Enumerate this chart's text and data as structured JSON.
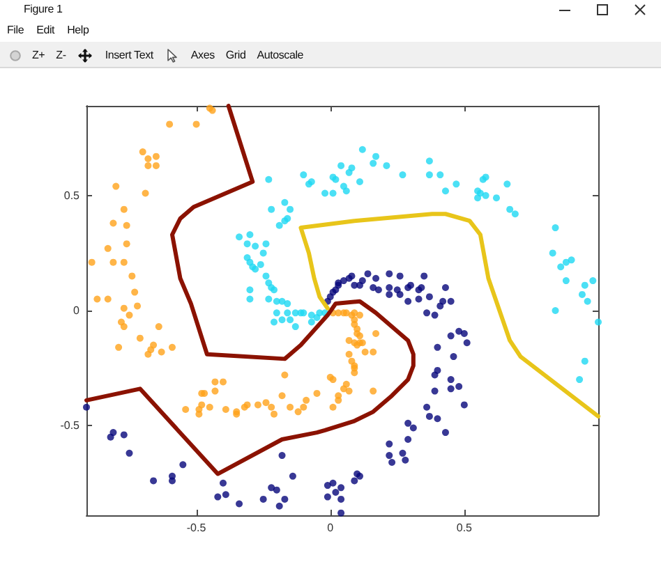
{
  "chart_data": [
    {
      "type": "other",
      "title": "Figure 1",
      "annotations": [
        "File",
        "Edit",
        "Help"
      ]
    },
    {
      "type": "other",
      "annotations": [
        "Z+",
        "Z-",
        "Insert Text",
        "Axes",
        "Grid",
        "Autoscale"
      ]
    },
    {
      "type": "scatter",
      "xlim": [
        -0.91,
        1.0
      ],
      "ylim": [
        -0.89,
        0.89
      ],
      "xticks": [
        -0.5,
        0,
        0.5
      ],
      "yticks": [
        -0.5,
        0,
        0.5
      ],
      "marker": "circle",
      "series": [
        {
          "type": "scatter",
          "color": "#ffa31a",
          "x": [
            -0.45,
            -0.44,
            -0.6,
            -0.5,
            -0.7,
            -0.68,
            -0.65,
            -0.68,
            -0.65,
            -0.8,
            -0.69,
            -0.77,
            -0.81,
            -0.76,
            -0.76,
            -0.83,
            -0.89,
            -0.81,
            -0.77,
            -0.74,
            -0.73,
            -0.87,
            -0.83,
            -0.77,
            -0.72,
            -0.75,
            -0.78,
            -0.77,
            -0.64,
            -0.71,
            -0.79,
            -0.66,
            -0.67,
            -0.68,
            -0.63,
            -0.59,
            -0.54,
            -0.49,
            -0.48,
            -0.47,
            -0.43,
            -0.4,
            -0.43,
            -0.48,
            -0.45,
            -0.49,
            -0.39,
            -0.35,
            -0.35,
            -0.32,
            -0.31,
            -0.27,
            -0.24,
            -0.22,
            -0.21,
            -0.18,
            -0.17,
            -0.15,
            -0.12,
            -0.1,
            -0.09,
            -0.05,
            0.0,
            0.01,
            0.03,
            0.03,
            0.05,
            0.06,
            0.07,
            0.16,
            0.01,
            0.01,
            0.03,
            0.05,
            0.06,
            0.08,
            0.09,
            0.11,
            0.09,
            0.09,
            0.1,
            0.1,
            0.07,
            0.09,
            0.1,
            0.11,
            0.12,
            0.11,
            0.17,
            0.13,
            0.16,
            0.07,
            0.09,
            0.09,
            0.09,
            0.08
          ],
          "values": [
            0.88,
            0.87,
            0.81,
            0.81,
            0.69,
            0.66,
            0.67,
            0.63,
            0.63,
            0.54,
            0.51,
            0.44,
            0.38,
            0.37,
            0.29,
            0.27,
            0.21,
            0.21,
            0.21,
            0.15,
            0.08,
            0.05,
            0.05,
            0.01,
            0.02,
            -0.02,
            -0.05,
            -0.07,
            -0.07,
            -0.12,
            -0.16,
            -0.15,
            -0.17,
            -0.19,
            -0.18,
            -0.16,
            -0.43,
            -0.43,
            -0.36,
            -0.36,
            -0.31,
            -0.31,
            -0.35,
            -0.41,
            -0.42,
            -0.45,
            -0.43,
            -0.45,
            -0.44,
            -0.42,
            -0.41,
            -0.41,
            -0.4,
            -0.42,
            -0.45,
            -0.37,
            -0.28,
            -0.42,
            -0.44,
            -0.42,
            -0.39,
            -0.36,
            -0.29,
            -0.3,
            -0.37,
            -0.39,
            -0.34,
            -0.32,
            -0.35,
            -0.35,
            -0.42,
            -0.01,
            -0.01,
            -0.01,
            -0.01,
            -0.02,
            -0.01,
            -0.02,
            -0.04,
            -0.06,
            -0.08,
            -0.1,
            -0.13,
            -0.14,
            -0.15,
            -0.14,
            -0.14,
            -0.11,
            -0.1,
            -0.18,
            -0.18,
            -0.19,
            -0.24,
            -0.25,
            -0.27,
            -0.22
          ]
        },
        {
          "type": "scatter",
          "color": "#1ed8f2",
          "x": [
            -0.23,
            -0.22,
            -0.17,
            -0.15,
            -0.16,
            -0.17,
            -0.19,
            -0.34,
            -0.3,
            -0.31,
            -0.28,
            -0.24,
            -0.25,
            -0.31,
            -0.3,
            -0.29,
            -0.28,
            -0.26,
            -0.24,
            -0.23,
            -0.22,
            -0.21,
            -0.3,
            -0.3,
            -0.23,
            -0.2,
            -0.18,
            -0.16,
            -0.2,
            -0.16,
            -0.13,
            -0.11,
            -0.1,
            -0.07,
            -0.05,
            -0.04,
            -0.02,
            -0.1,
            -0.08,
            -0.07,
            -0.02,
            -0.21,
            -0.18,
            -0.13,
            -0.07,
            -0.15,
            0.01,
            0.01,
            0.02,
            0.04,
            0.05,
            0.06,
            0.07,
            0.08,
            0.11,
            0.12,
            0.16,
            0.17,
            0.21,
            0.27,
            0.37,
            0.37,
            0.41,
            0.43,
            0.47,
            0.55,
            0.55,
            0.56,
            0.58,
            0.58,
            0.57,
            0.62,
            0.66,
            0.67,
            0.69,
            0.84,
            0.83,
            0.86,
            0.88,
            0.9,
            0.88,
            0.95,
            0.96,
            0.94,
            0.98,
            0.84,
            1.0,
            0.95,
            0.93
          ],
          "values": [
            0.57,
            0.44,
            0.47,
            0.44,
            0.4,
            0.39,
            0.37,
            0.32,
            0.33,
            0.29,
            0.28,
            0.29,
            0.25,
            0.23,
            0.21,
            0.19,
            0.18,
            0.2,
            0.15,
            0.12,
            0.1,
            0.09,
            0.09,
            0.05,
            0.05,
            0.04,
            0.04,
            0.03,
            -0.01,
            -0.01,
            -0.01,
            -0.01,
            -0.01,
            -0.02,
            -0.03,
            -0.01,
            -0.01,
            0.59,
            0.55,
            0.56,
            0.51,
            -0.05,
            -0.04,
            -0.07,
            -0.05,
            -0.04,
            0.51,
            0.58,
            0.57,
            0.63,
            0.54,
            0.52,
            0.6,
            0.62,
            0.56,
            0.7,
            0.64,
            0.67,
            0.63,
            0.59,
            0.65,
            0.59,
            0.59,
            0.52,
            0.55,
            0.49,
            0.52,
            0.51,
            0.5,
            0.58,
            0.57,
            0.49,
            0.55,
            0.44,
            0.42,
            0.36,
            0.25,
            0.19,
            0.21,
            0.22,
            0.13,
            0.11,
            0.04,
            0.07,
            0.13,
            0.0,
            -0.05,
            -0.22,
            -0.3
          ]
        },
        {
          "type": "scatter",
          "color": "#06067a",
          "x": [
            0.03,
            0.05,
            0.07,
            0.08,
            0.09,
            0.12,
            0.11,
            0.14,
            0.17,
            0.16,
            0.18,
            0.22,
            0.22,
            0.22,
            0.25,
            0.26,
            0.26,
            0.29,
            0.29,
            0.3,
            0.33,
            0.34,
            0.35,
            0.33,
            0.37,
            0.36,
            0.39,
            0.41,
            0.42,
            0.43,
            0.45,
            -0.01,
            0.0,
            0.01,
            0.02,
            0.03,
            0.45,
            0.48,
            0.5,
            0.51,
            0.4,
            0.46,
            0.4,
            0.39,
            0.45,
            0.45,
            0.48,
            0.39,
            0.5,
            0.36,
            0.37,
            0.4,
            0.43,
            0.29,
            0.31,
            0.29,
            0.22,
            0.22,
            0.23,
            0.27,
            0.28,
            0.1,
            0.11,
            0.09,
            -0.01,
            0.01,
            -0.01,
            0.02,
            0.04,
            0.04,
            0.04,
            -0.91,
            -0.82,
            -0.81,
            -0.77,
            -0.75,
            -0.66,
            -0.59,
            -0.59,
            -0.55,
            -0.4,
            -0.42,
            -0.39,
            -0.34,
            -0.25,
            -0.22,
            -0.2,
            -0.17,
            -0.19,
            -0.18,
            -0.14
          ],
          "values": [
            0.12,
            0.13,
            0.14,
            0.15,
            0.11,
            0.13,
            0.11,
            0.16,
            0.14,
            0.1,
            0.09,
            0.16,
            0.1,
            0.07,
            0.09,
            0.07,
            0.15,
            0.1,
            0.04,
            0.11,
            0.09,
            0.1,
            0.15,
            0.05,
            0.06,
            -0.01,
            -0.02,
            0.02,
            0.04,
            0.1,
            0.04,
            0.04,
            0.06,
            0.08,
            0.09,
            0.11,
            -0.11,
            -0.09,
            -0.1,
            -0.14,
            -0.16,
            -0.2,
            -0.26,
            -0.28,
            -0.3,
            -0.34,
            -0.33,
            -0.35,
            -0.41,
            -0.42,
            -0.46,
            -0.47,
            -0.53,
            -0.49,
            -0.51,
            -0.56,
            -0.58,
            -0.63,
            -0.66,
            -0.62,
            -0.65,
            -0.71,
            -0.72,
            -0.74,
            -0.76,
            -0.75,
            -0.81,
            -0.79,
            -0.77,
            -0.82,
            -0.88,
            -0.42,
            -0.55,
            -0.53,
            -0.54,
            -0.62,
            -0.74,
            -0.72,
            -0.74,
            -0.67,
            -0.75,
            -0.81,
            -0.8,
            -0.84,
            -0.82,
            -0.77,
            -0.78,
            -0.82,
            -0.85,
            -0.63,
            -0.72
          ]
        },
        {
          "type": "line",
          "color": "#8b1200",
          "marker": "none",
          "x": [
            -0.38,
            -0.29,
            -0.51,
            -0.56,
            -0.59,
            -0.56,
            -0.52,
            -0.46,
            -0.17,
            -0.11,
            -0.01,
            0.02,
            0.11,
            0.17,
            0.29,
            0.31,
            0.31,
            0.29,
            0.23,
            0.16,
            0.09,
            -0.02,
            -0.05,
            -0.18,
            -0.42,
            -0.71,
            -0.91
          ],
          "values": [
            0.89,
            0.56,
            0.45,
            0.4,
            0.33,
            0.14,
            0.03,
            -0.19,
            -0.21,
            -0.15,
            -0.02,
            0.03,
            0.04,
            -0.01,
            -0.13,
            -0.19,
            -0.24,
            -0.3,
            -0.37,
            -0.44,
            -0.48,
            -0.52,
            -0.53,
            -0.56,
            -0.71,
            -0.34,
            -0.39
          ]
        },
        {
          "type": "line",
          "color": "#e8c51a",
          "marker": "none",
          "x": [
            -0.01,
            -0.04,
            -0.06,
            -0.08,
            -0.11,
            0.09,
            0.38,
            0.43,
            0.52,
            0.56,
            0.59,
            0.67,
            0.71,
            1.0
          ],
          "values": [
            0.01,
            0.06,
            0.14,
            0.25,
            0.36,
            0.39,
            0.42,
            0.42,
            0.39,
            0.33,
            0.14,
            -0.13,
            -0.2,
            -0.46
          ]
        }
      ]
    }
  ]
}
